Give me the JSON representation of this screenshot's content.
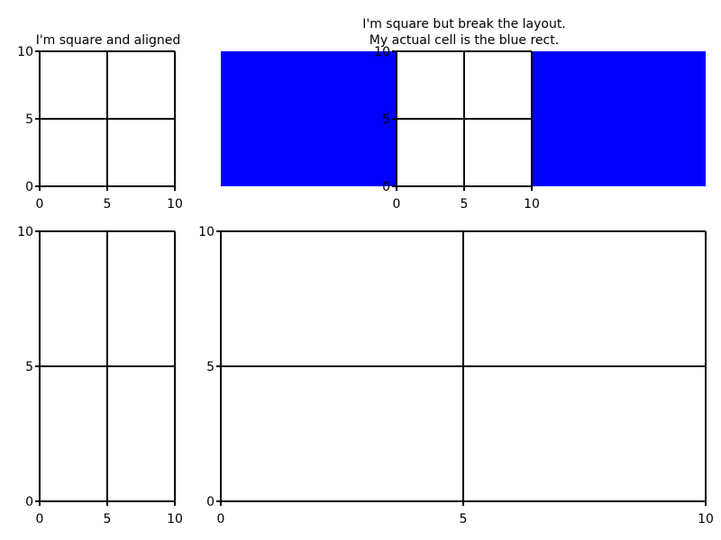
{
  "chart_data": [
    {
      "type": "scatter",
      "title": "I'm square and aligned",
      "subtitle": "",
      "xlabel": "",
      "ylabel": "",
      "xlim": [
        0,
        10
      ],
      "ylim": [
        0,
        10
      ],
      "xticks": [
        0,
        5,
        10
      ],
      "yticks": [
        0,
        5,
        10
      ],
      "grid": true,
      "series": [],
      "colors": {
        "axis": "#000000",
        "grid": "#000000",
        "background": "#ffffff"
      }
    },
    {
      "type": "scatter",
      "title": "I'm square but break the layout.",
      "subtitle": "My actual cell is the blue rect.",
      "xlabel": "",
      "ylabel": "",
      "xlim": [
        0,
        10
      ],
      "ylim": [
        0,
        10
      ],
      "xticks": [
        0,
        5,
        10
      ],
      "yticks": [
        0,
        5,
        10
      ],
      "grid": true,
      "series": [],
      "colors": {
        "axis": "#000000",
        "grid": "#000000",
        "background": "#ffffff",
        "cell_background": "#0000ff"
      }
    },
    {
      "type": "scatter",
      "title": "",
      "subtitle": "",
      "xlabel": "",
      "ylabel": "",
      "xlim": [
        0,
        10
      ],
      "ylim": [
        0,
        10
      ],
      "xticks": [
        0,
        5,
        10
      ],
      "yticks": [
        0,
        5,
        10
      ],
      "grid": true,
      "series": [],
      "colors": {
        "axis": "#000000",
        "grid": "#000000",
        "background": "#ffffff"
      }
    },
    {
      "type": "scatter",
      "title": "",
      "subtitle": "",
      "xlabel": "",
      "ylabel": "",
      "xlim": [
        0,
        10
      ],
      "ylim": [
        0,
        10
      ],
      "xticks": [
        0,
        5,
        10
      ],
      "yticks": [
        0,
        5,
        10
      ],
      "grid": true,
      "series": [],
      "colors": {
        "axis": "#000000",
        "grid": "#000000",
        "background": "#ffffff"
      }
    }
  ]
}
